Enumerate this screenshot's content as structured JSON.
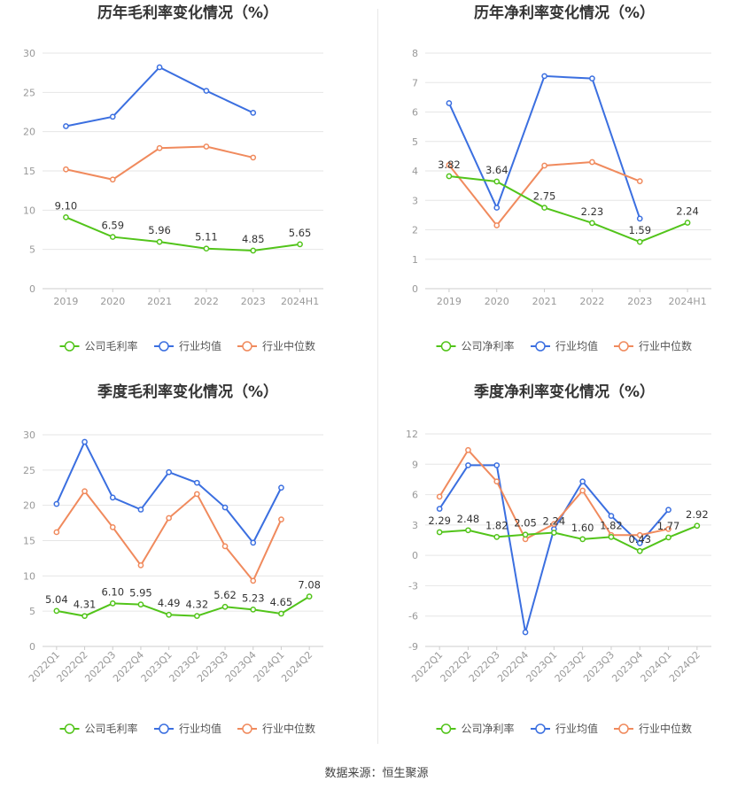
{
  "source_text": "数据来源：恒生聚源",
  "colors": {
    "company": "#52c41a",
    "industry_avg": "#3b6fe0",
    "industry_median": "#f08a5d",
    "grid": "#e6e6e6",
    "axis_text": "#999999",
    "label_text": "#333333"
  },
  "chart_data": [
    {
      "type": "line",
      "title": "历年毛利率变化情况（%）",
      "categories": [
        "2019",
        "2020",
        "2021",
        "2022",
        "2023",
        "2024H1"
      ],
      "ylim": [
        0,
        30
      ],
      "yticks": [
        0,
        5,
        10,
        15,
        20,
        25,
        30
      ],
      "grid": true,
      "legend_position": "bottom",
      "series": [
        {
          "name": "公司毛利率",
          "color": "#52c41a",
          "labels": true,
          "values": [
            9.1,
            6.59,
            5.96,
            5.11,
            4.85,
            5.65
          ]
        },
        {
          "name": "行业均值",
          "color": "#3b6fe0",
          "labels": false,
          "values": [
            20.7,
            21.9,
            28.2,
            25.2,
            22.4,
            null
          ]
        },
        {
          "name": "行业中位数",
          "color": "#f08a5d",
          "labels": false,
          "values": [
            15.2,
            13.9,
            17.9,
            18.1,
            16.7,
            null
          ]
        }
      ]
    },
    {
      "type": "line",
      "title": "历年净利率变化情况（%）",
      "categories": [
        "2019",
        "2020",
        "2021",
        "2022",
        "2023",
        "2024H1"
      ],
      "ylim": [
        0,
        8
      ],
      "yticks": [
        0,
        1,
        2,
        3,
        4,
        5,
        6,
        7,
        8
      ],
      "grid": true,
      "legend_position": "bottom",
      "series": [
        {
          "name": "公司净利率",
          "color": "#52c41a",
          "labels": true,
          "values": [
            3.82,
            3.64,
            2.75,
            2.23,
            1.59,
            2.24
          ]
        },
        {
          "name": "行业均值",
          "color": "#3b6fe0",
          "labels": false,
          "values": [
            6.3,
            2.75,
            7.22,
            7.14,
            2.38,
            null
          ]
        },
        {
          "name": "行业中位数",
          "color": "#f08a5d",
          "labels": false,
          "values": [
            4.2,
            2.15,
            4.18,
            4.3,
            3.65,
            null
          ]
        }
      ]
    },
    {
      "type": "line",
      "title": "季度毛利率变化情况（%）",
      "categories": [
        "2022Q1",
        "2022Q2",
        "2022Q3",
        "2022Q4",
        "2023Q1",
        "2023Q2",
        "2023Q3",
        "2023Q4",
        "2024Q1",
        "2024Q2"
      ],
      "ylim": [
        0,
        30
      ],
      "yticks": [
        0,
        5,
        10,
        15,
        20,
        25,
        30
      ],
      "rotate_x_labels": true,
      "grid": true,
      "legend_position": "bottom",
      "series": [
        {
          "name": "公司毛利率",
          "color": "#52c41a",
          "labels": true,
          "values": [
            5.04,
            4.31,
            6.1,
            5.95,
            4.49,
            4.32,
            5.62,
            5.23,
            4.65,
            7.08
          ]
        },
        {
          "name": "行业均值",
          "color": "#3b6fe0",
          "labels": false,
          "values": [
            20.2,
            29.0,
            21.1,
            19.4,
            24.7,
            23.2,
            19.7,
            14.7,
            22.5,
            null
          ]
        },
        {
          "name": "行业中位数",
          "color": "#f08a5d",
          "labels": false,
          "values": [
            16.2,
            22.0,
            16.9,
            11.5,
            18.2,
            21.6,
            14.2,
            9.3,
            18.0,
            null
          ]
        }
      ]
    },
    {
      "type": "line",
      "title": "季度净利率变化情况（%）",
      "categories": [
        "2022Q1",
        "2022Q2",
        "2022Q3",
        "2022Q4",
        "2023Q1",
        "2023Q2",
        "2023Q3",
        "2023Q4",
        "2024Q1",
        "2024Q2"
      ],
      "ylim": [
        -9,
        12
      ],
      "yticks": [
        -9,
        -6,
        -3,
        0,
        3,
        6,
        9,
        12
      ],
      "rotate_x_labels": true,
      "grid": true,
      "legend_position": "bottom",
      "series": [
        {
          "name": "公司净利率",
          "color": "#52c41a",
          "labels": true,
          "values": [
            2.29,
            2.48,
            1.82,
            2.05,
            2.24,
            1.6,
            1.82,
            0.43,
            1.77,
            2.92
          ]
        },
        {
          "name": "行业均值",
          "color": "#3b6fe0",
          "labels": false,
          "values": [
            4.6,
            8.9,
            8.9,
            -7.6,
            2.6,
            7.3,
            3.9,
            1.2,
            4.5,
            null
          ]
        },
        {
          "name": "行业中位数",
          "color": "#f08a5d",
          "labels": false,
          "values": [
            5.8,
            10.4,
            7.3,
            1.6,
            3.1,
            6.4,
            2.0,
            2.0,
            2.6,
            null
          ]
        }
      ]
    }
  ]
}
